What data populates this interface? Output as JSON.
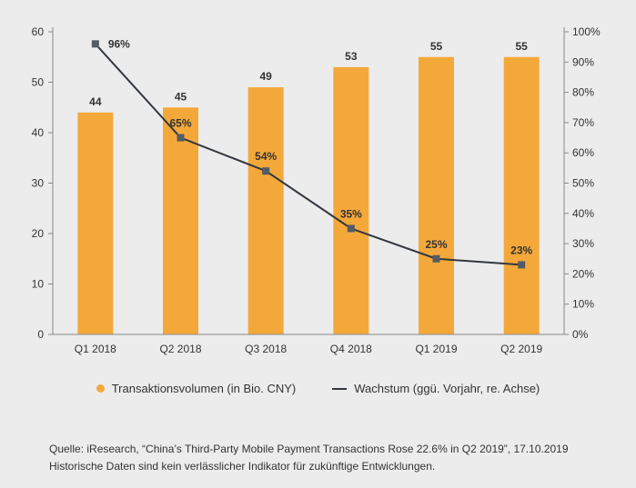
{
  "chart_data": {
    "type": "bar",
    "categories": [
      "Q1 2018",
      "Q2 2018",
      "Q3 2018",
      "Q4 2018",
      "Q1 2019",
      "Q2 2019"
    ],
    "series": [
      {
        "name": "Transaktionsvolumen (in Bio. CNY)",
        "type": "bar",
        "axis": "left",
        "values": [
          44,
          45,
          49,
          53,
          55,
          55
        ],
        "labels": [
          "44",
          "45",
          "49",
          "53",
          "55",
          "55"
        ]
      },
      {
        "name": "Wachstum (ggü. Vorjahr, re. Achse)",
        "type": "line",
        "axis": "right",
        "values": [
          96,
          65,
          54,
          35,
          25,
          23
        ],
        "labels": [
          "96%",
          "65%",
          "54%",
          "35%",
          "25%",
          "23%"
        ]
      }
    ],
    "ylim": [
      0,
      60
    ],
    "y_ticks": [
      "0",
      "10",
      "20",
      "30",
      "40",
      "50",
      "60"
    ],
    "y2lim": [
      0,
      100
    ],
    "y2_ticks": [
      "0%",
      "10%",
      "20%",
      "30%",
      "40%",
      "50%",
      "60%",
      "70%",
      "80%",
      "90%",
      "100%"
    ],
    "grid": false,
    "legend_position": "bottom",
    "colors": {
      "bar": "#f5a83a",
      "line": "#33383f"
    }
  },
  "footer": {
    "source": "Quelle: iResearch, “China’s Third-Party Mobile Payment Transactions Rose 22.6% in Q2 2019”, 17.10.2019",
    "disclaimer": "Historische Daten sind kein verlässlicher Indikator für zukünftige Entwicklungen."
  }
}
